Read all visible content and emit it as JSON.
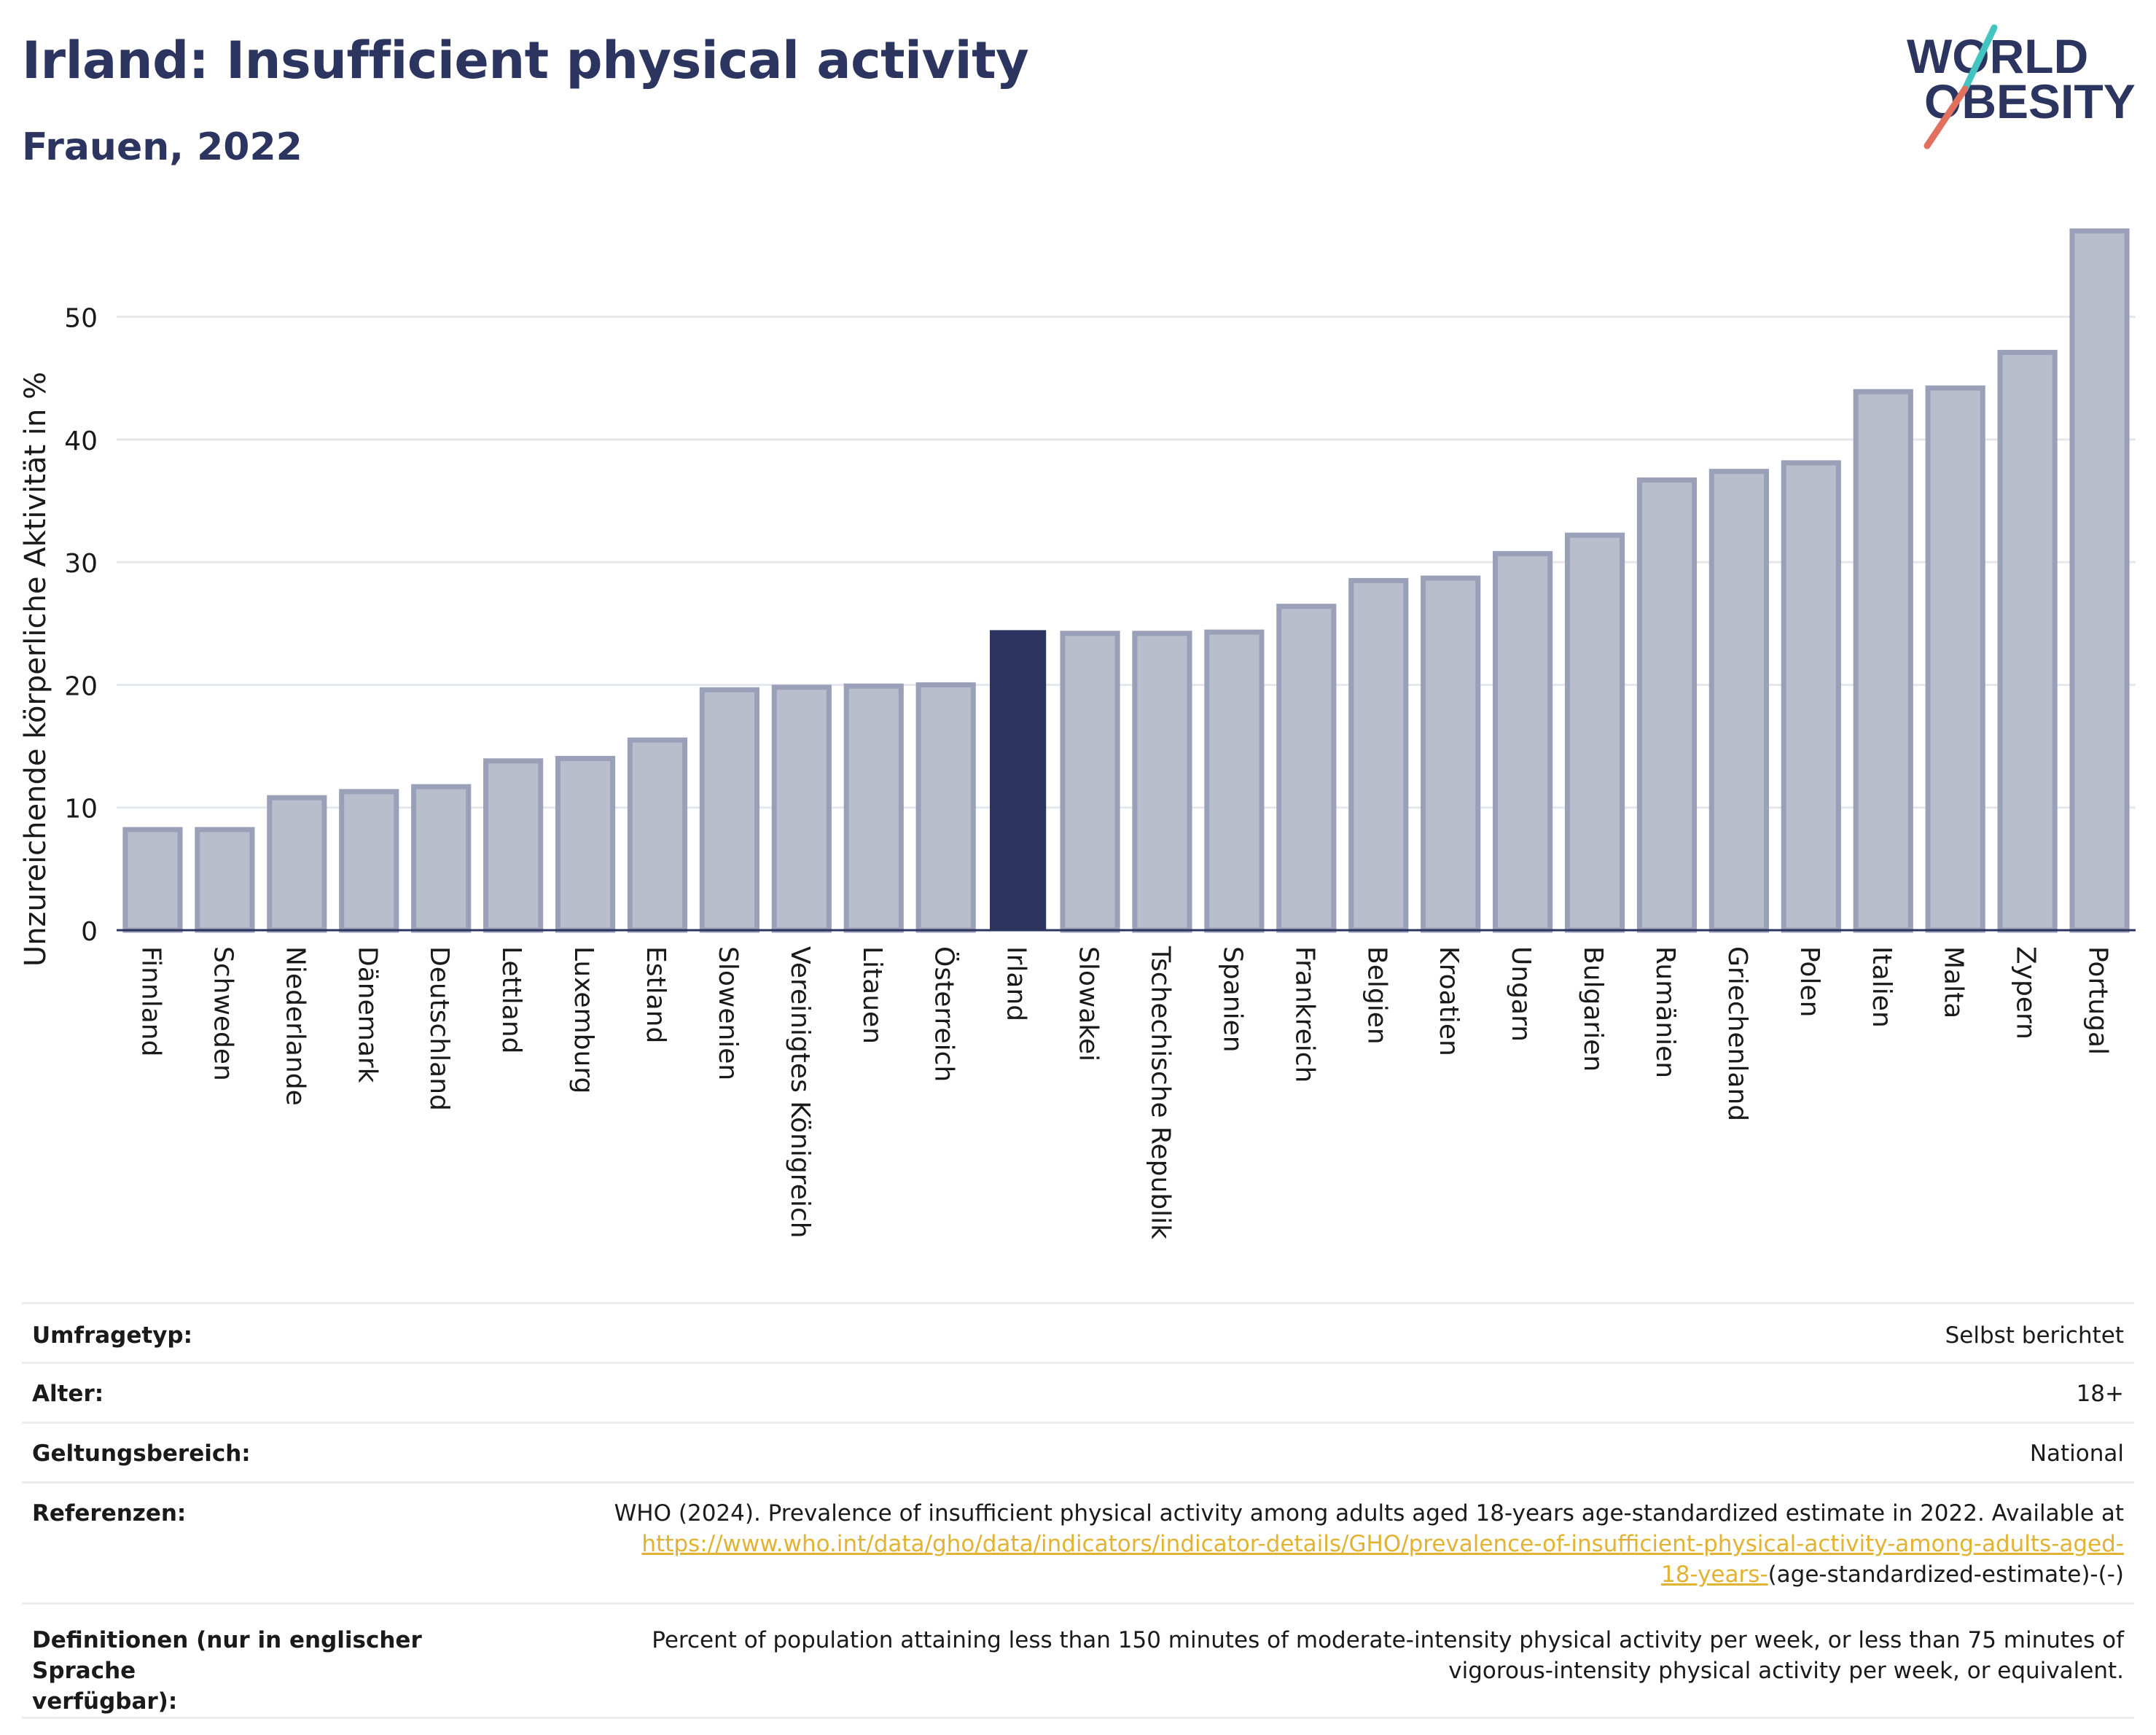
{
  "header": {
    "title": "Irland: Insufficient physical activity",
    "subtitle": "Frauen, 2022"
  },
  "logo": {
    "line1": "WORLD",
    "line2": "OBESITY",
    "slash_colors": [
      "#43c4c1",
      "#e2705f"
    ]
  },
  "colors": {
    "bar_default": "#b9bdcc",
    "bar_default_border": "#9ba0b9",
    "bar_highlight": "#2b3560",
    "title": "#2b3560",
    "link": "#e2b232"
  },
  "chart_data": {
    "type": "bar",
    "title": "Irland: Insufficient physical activity",
    "subtitle": "Frauen, 2022",
    "xlabel": "",
    "ylabel": "Unzureichende körperliche Aktivität in %",
    "ylim": [
      0,
      58
    ],
    "yticks": [
      0,
      10,
      20,
      30,
      40,
      50
    ],
    "grid": true,
    "highlight": "Irland",
    "categories": [
      "Finnland",
      "Schweden",
      "Niederlande",
      "Dänemark",
      "Deutschland",
      "Lettland",
      "Luxemburg",
      "Estland",
      "Slowenien",
      "Vereinigtes Königreich",
      "Litauen",
      "Österreich",
      "Irland",
      "Slowakei",
      "Tschechische Republik",
      "Spanien",
      "Frankreich",
      "Belgien",
      "Kroatien",
      "Ungarn",
      "Bulgarien",
      "Rumänien",
      "Griechenland",
      "Polen",
      "Italien",
      "Malta",
      "Zypern",
      "Portugal"
    ],
    "values": [
      8.2,
      8.2,
      10.8,
      11.3,
      11.7,
      13.8,
      14.0,
      15.5,
      19.6,
      19.8,
      19.9,
      20.0,
      24.4,
      24.2,
      24.2,
      24.3,
      26.4,
      28.5,
      28.7,
      30.7,
      32.2,
      36.7,
      37.4,
      38.1,
      43.9,
      44.2,
      47.1,
      57.0
    ]
  },
  "meta": {
    "rows": [
      {
        "label": "Umfragetyp:",
        "value": "Selbst berichtet"
      },
      {
        "label": "Alter:",
        "value": "18+"
      },
      {
        "label": "Geltungsbereich:",
        "value": "National"
      }
    ],
    "references": {
      "label": "Referenzen:",
      "text": "WHO (2024). Prevalence of insufficient physical activity among adults aged 18-years age-standardized estimate in 2022. Available at",
      "link_line1": "https://www.who.int/data/gho/data/indicators/indicator-details/GHO/prevalence-of-insufficient-physical-activity-among-adults-aged-",
      "link_line2": "18-years-",
      "suffix": "(age-standardized-estimate)-(-)"
    },
    "definitions": {
      "label_line1": "Definitionen (nur in englischer Sprache",
      "label_line2": "verfügbar):",
      "text_line1": "Percent of population attaining less than 150 minutes of moderate-intensity physical activity per week, or less than 75 minutes of",
      "text_line2": "vigorous-intensity physical activity per week, or equivalent."
    }
  }
}
